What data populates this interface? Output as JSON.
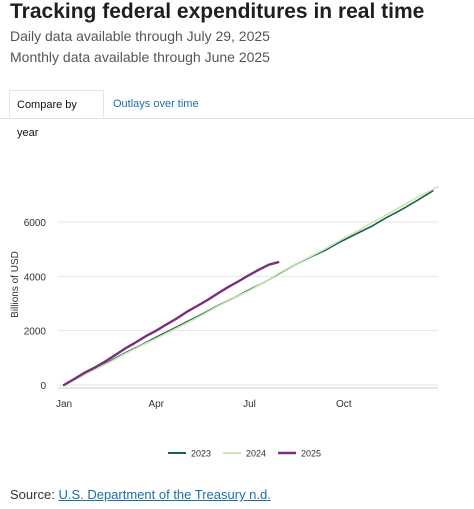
{
  "header": {
    "title": "Tracking federal expenditures in real time",
    "subtitle_daily": "Daily data available through July 29, 2025",
    "subtitle_monthly": "Monthly data available through June 2025"
  },
  "tabs": [
    {
      "label": "Compare by year",
      "active": true
    },
    {
      "label": "Outlays over time",
      "active": false
    }
  ],
  "colors": {
    "s2023": "#1a5e4f",
    "s2024": "#c8e6b4",
    "s2025": "#7b2d7e",
    "link": "#1a6fa8"
  },
  "source": {
    "prefix": "Source:",
    "link_text": "U.S. Department of the Treasury n.d."
  },
  "chart_data": {
    "type": "line",
    "ylabel": "Billions of USD",
    "xlabel": "",
    "ylim": [
      0,
      7400
    ],
    "xlim": [
      0,
      365
    ],
    "y_ticks": [
      0,
      2000,
      4000,
      6000
    ],
    "x_ticks": [
      {
        "label": "Jan",
        "day": 0
      },
      {
        "label": "Apr",
        "day": 90
      },
      {
        "label": "Jul",
        "day": 181
      },
      {
        "label": "Oct",
        "day": 273
      }
    ],
    "grid": true,
    "legend_position": "bottom",
    "series": [
      {
        "name": "2023",
        "color": "#1a5e4f",
        "x": [
          0,
          15,
          30,
          45,
          60,
          75,
          90,
          105,
          120,
          135,
          150,
          165,
          180,
          195,
          210,
          225,
          240,
          255,
          270,
          285,
          300,
          315,
          330,
          345,
          360
        ],
        "y": [
          0,
          300,
          600,
          880,
          1190,
          1460,
          1760,
          2040,
          2330,
          2610,
          2920,
          3190,
          3490,
          3770,
          4100,
          4420,
          4700,
          4960,
          5280,
          5560,
          5840,
          6170,
          6470,
          6800,
          7150
        ]
      },
      {
        "name": "2024",
        "color": "#c8e6b4",
        "x": [
          0,
          15,
          30,
          45,
          60,
          75,
          90,
          105,
          120,
          135,
          150,
          165,
          180,
          195,
          210,
          225,
          240,
          255,
          270,
          285,
          300,
          315,
          330,
          345,
          365
        ],
        "y": [
          0,
          280,
          570,
          850,
          1160,
          1440,
          1720,
          2000,
          2290,
          2580,
          2900,
          3180,
          3460,
          3770,
          4120,
          4430,
          4720,
          5010,
          5340,
          5640,
          5960,
          6270,
          6590,
          6910,
          7300
        ]
      },
      {
        "name": "2025",
        "color": "#7b2d7e",
        "x": [
          0,
          10,
          20,
          30,
          40,
          50,
          60,
          70,
          80,
          90,
          100,
          110,
          120,
          130,
          140,
          150,
          160,
          170,
          180,
          190,
          200,
          209
        ],
        "y": [
          0,
          220,
          450,
          640,
          860,
          1100,
          1350,
          1570,
          1800,
          2000,
          2230,
          2450,
          2700,
          2910,
          3130,
          3370,
          3600,
          3810,
          4030,
          4240,
          4430,
          4520
        ]
      }
    ]
  }
}
